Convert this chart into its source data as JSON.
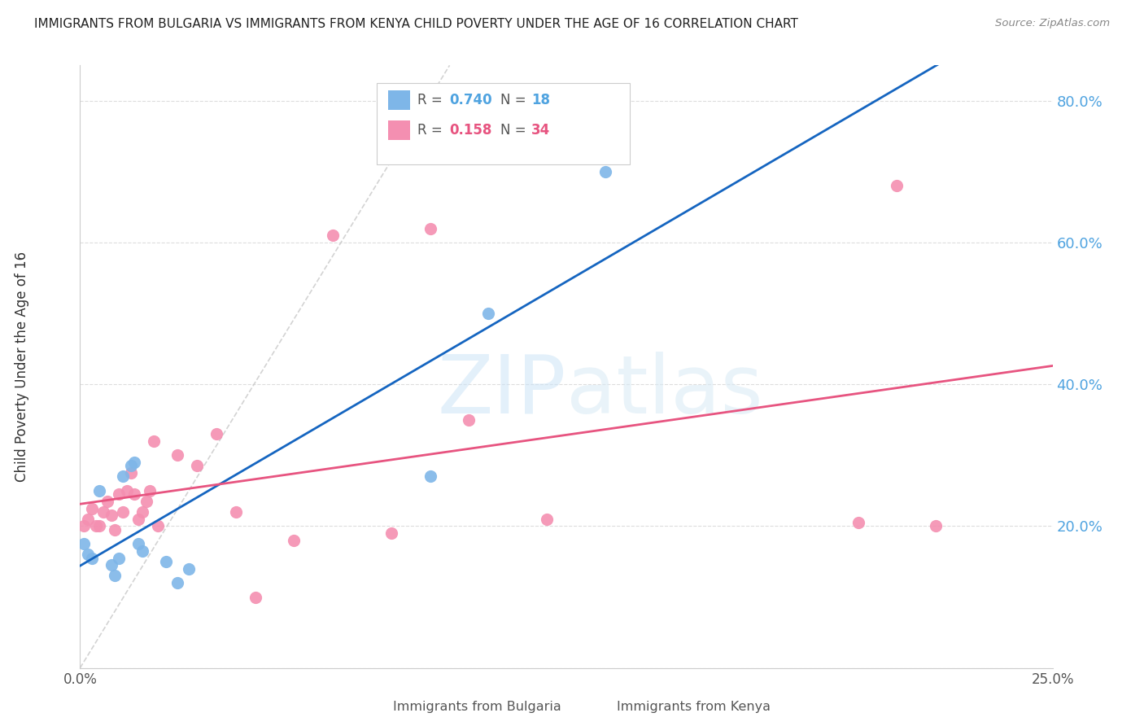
{
  "title": "IMMIGRANTS FROM BULGARIA VS IMMIGRANTS FROM KENYA CHILD POVERTY UNDER THE AGE OF 16 CORRELATION CHART",
  "source": "Source: ZipAtlas.com",
  "ylabel": "Child Poverty Under the Age of 16",
  "xlim": [
    0.0,
    0.25
  ],
  "ylim": [
    0.0,
    0.85
  ],
  "xticks": [
    0.0,
    0.05,
    0.1,
    0.15,
    0.2,
    0.25
  ],
  "yticks": [
    0.0,
    0.2,
    0.4,
    0.6,
    0.8
  ],
  "ytick_labels": [
    "",
    "20.0%",
    "40.0%",
    "60.0%",
    "80.0%"
  ],
  "xtick_labels": [
    "0.0%",
    "",
    "",
    "",
    "",
    "25.0%"
  ],
  "bulgaria_R": 0.74,
  "bulgaria_N": 18,
  "kenya_R": 0.158,
  "kenya_N": 34,
  "bulgaria_color": "#7eb6e8",
  "kenya_color": "#f48fb1",
  "bulgaria_line_color": "#1565c0",
  "kenya_line_color": "#e75480",
  "watermark_zip": "ZIP",
  "watermark_atlas": "atlas",
  "bulgaria_x": [
    0.001,
    0.002,
    0.003,
    0.005,
    0.008,
    0.009,
    0.01,
    0.011,
    0.013,
    0.014,
    0.015,
    0.016,
    0.022,
    0.025,
    0.028,
    0.09,
    0.105,
    0.135
  ],
  "bulgaria_y": [
    0.175,
    0.16,
    0.155,
    0.25,
    0.145,
    0.13,
    0.155,
    0.27,
    0.285,
    0.29,
    0.175,
    0.165,
    0.15,
    0.12,
    0.14,
    0.27,
    0.5,
    0.7
  ],
  "kenya_x": [
    0.001,
    0.002,
    0.003,
    0.004,
    0.005,
    0.006,
    0.007,
    0.008,
    0.009,
    0.01,
    0.011,
    0.012,
    0.013,
    0.014,
    0.015,
    0.016,
    0.017,
    0.018,
    0.019,
    0.02,
    0.025,
    0.03,
    0.035,
    0.04,
    0.045,
    0.055,
    0.065,
    0.08,
    0.09,
    0.1,
    0.12,
    0.2,
    0.21,
    0.22
  ],
  "kenya_y": [
    0.2,
    0.21,
    0.225,
    0.2,
    0.2,
    0.22,
    0.235,
    0.215,
    0.195,
    0.245,
    0.22,
    0.25,
    0.275,
    0.245,
    0.21,
    0.22,
    0.235,
    0.25,
    0.32,
    0.2,
    0.3,
    0.285,
    0.33,
    0.22,
    0.1,
    0.18,
    0.61,
    0.19,
    0.62,
    0.35,
    0.21,
    0.205,
    0.68,
    0.2
  ],
  "label_color": "#4fa3e0",
  "pink_label_color": "#e75480"
}
